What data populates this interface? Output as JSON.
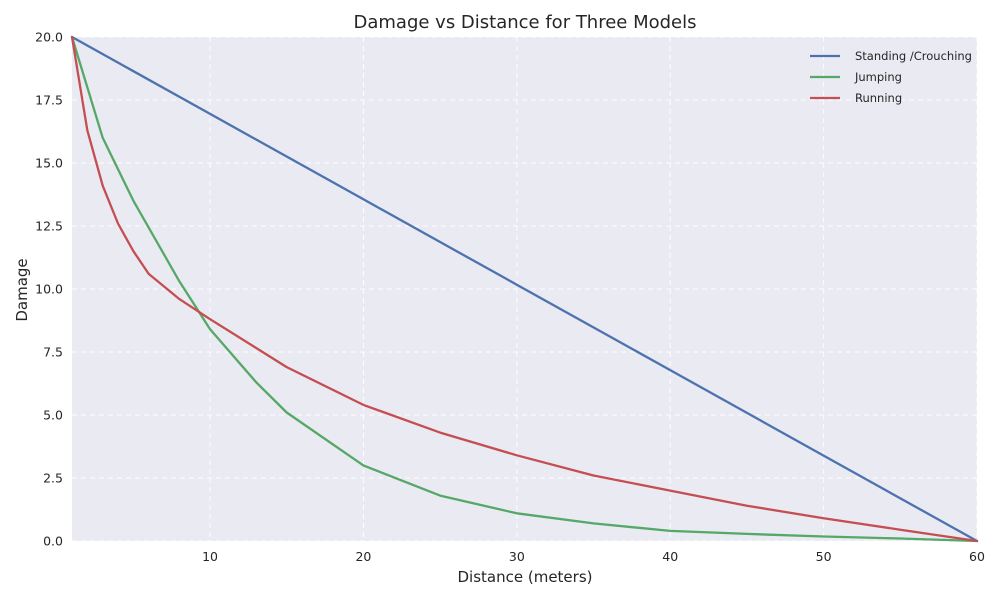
{
  "chart_data": {
    "type": "line",
    "title": "Damage vs Distance for Three Models",
    "xlabel": "Distance (meters)",
    "ylabel": "Damage",
    "xlim": [
      1,
      60
    ],
    "ylim": [
      0,
      20
    ],
    "x_ticks": [
      10,
      20,
      30,
      40,
      50,
      60
    ],
    "y_ticks": [
      0.0,
      2.5,
      5.0,
      7.5,
      10.0,
      12.5,
      15.0,
      17.5,
      20.0
    ],
    "x_tick_labels": [
      "10",
      "20",
      "30",
      "40",
      "50",
      "60"
    ],
    "y_tick_labels": [
      "0.0",
      "2.5",
      "5.0",
      "7.5",
      "10.0",
      "12.5",
      "15.0",
      "17.5",
      "20.0"
    ],
    "grid": true,
    "legend_position": "top-right",
    "background": "#eaeaf2",
    "series": [
      {
        "name": "Standing /Crouching",
        "color": "#4c72b0",
        "x": [
          1,
          10,
          20,
          30,
          40,
          50,
          60
        ],
        "y": [
          20.0,
          16.95,
          13.56,
          10.17,
          6.78,
          3.39,
          0.0
        ]
      },
      {
        "name": "Jumping",
        "color": "#55a868",
        "x": [
          1,
          3,
          5,
          8,
          10,
          13,
          15,
          20,
          25,
          30,
          35,
          40,
          45,
          50,
          55,
          60
        ],
        "y": [
          20.0,
          16.0,
          13.5,
          10.3,
          8.4,
          6.3,
          5.1,
          3.0,
          1.8,
          1.1,
          0.7,
          0.4,
          0.28,
          0.18,
          0.1,
          0.0
        ]
      },
      {
        "name": "Running",
        "color": "#c44e52",
        "x": [
          1,
          2,
          3,
          4,
          5,
          6,
          8,
          10,
          15,
          20,
          25,
          30,
          35,
          40,
          45,
          50,
          55,
          60
        ],
        "y": [
          20.0,
          16.3,
          14.1,
          12.6,
          11.5,
          10.6,
          9.6,
          8.8,
          6.9,
          5.4,
          4.3,
          3.4,
          2.6,
          2.0,
          1.4,
          0.9,
          0.45,
          0.0
        ]
      }
    ]
  }
}
